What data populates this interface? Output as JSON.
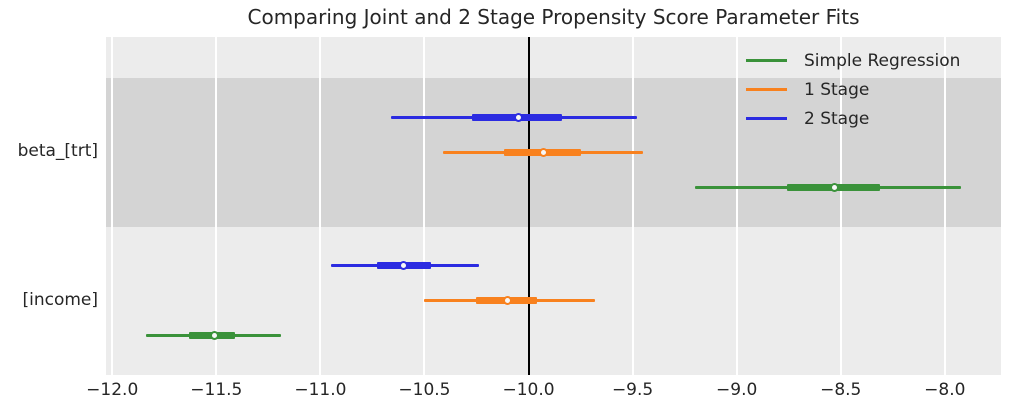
{
  "chart_data": {
    "type": "forest",
    "title": "Comparing Joint and 2 Stage Propensity Score Parameter Fits",
    "xlim": [
      -12.03,
      -7.73
    ],
    "x_ticks": [
      -12.0,
      -11.5,
      -11.0,
      -10.5,
      -10.0,
      -9.5,
      -9.0,
      -8.5,
      -8.0
    ],
    "reference_line_x": -10.0,
    "grid": "white-vertical-lines",
    "legend_position": "upper-right-inside",
    "legend": [
      {
        "label": "Simple Regression",
        "color_key": "simple_regression"
      },
      {
        "label": "1 Stage",
        "color_key": "one_stage"
      },
      {
        "label": "2 Stage",
        "color_key": "two_stage"
      }
    ],
    "groups": [
      {
        "label": "beta_[trt]",
        "band": "dark",
        "series": [
          {
            "name": "2 Stage",
            "color_key": "two_stage",
            "mean": -10.05,
            "ci50": [
              -10.27,
              -9.84
            ],
            "ci95": [
              -10.66,
              -9.48
            ]
          },
          {
            "name": "1 Stage",
            "color_key": "one_stage",
            "mean": -9.93,
            "ci50": [
              -10.12,
              -9.75
            ],
            "ci95": [
              -10.41,
              -9.45
            ]
          },
          {
            "name": "Simple Regression",
            "color_key": "simple_regression",
            "mean": -8.53,
            "ci50": [
              -8.76,
              -8.31
            ],
            "ci95": [
              -9.2,
              -7.92
            ]
          }
        ]
      },
      {
        "label": "[income]",
        "band": "light",
        "series": [
          {
            "name": "2 Stage",
            "color_key": "two_stage",
            "mean": -10.6,
            "ci50": [
              -10.73,
              -10.47
            ],
            "ci95": [
              -10.95,
              -10.24
            ]
          },
          {
            "name": "1 Stage",
            "color_key": "one_stage",
            "mean": -10.1,
            "ci50": [
              -10.25,
              -9.96
            ],
            "ci95": [
              -10.5,
              -9.68
            ]
          },
          {
            "name": "Simple Regression",
            "color_key": "simple_regression",
            "mean": -11.51,
            "ci50": [
              -11.63,
              -11.41
            ],
            "ci95": [
              -11.84,
              -11.19
            ]
          }
        ]
      }
    ],
    "colors": {
      "simple_regression": "#3a923a",
      "one_stage": "#f8811e",
      "two_stage": "#2b2be1",
      "reference_line": "#000000",
      "band_dark": "#d4d4d4",
      "band_light": "#ececec",
      "grid_line": "#ffffff",
      "text": "#262626"
    }
  }
}
